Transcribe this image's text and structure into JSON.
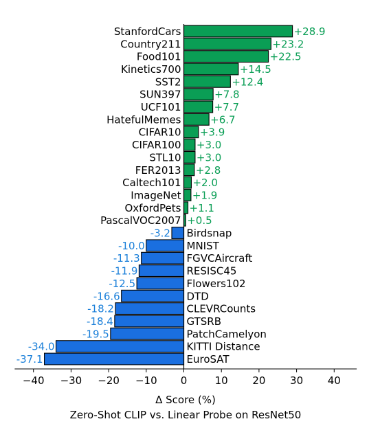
{
  "chart_data": {
    "type": "bar",
    "orientation": "horizontal",
    "categories": [
      "StanfordCars",
      "Country211",
      "Food101",
      "Kinetics700",
      "SST2",
      "SUN397",
      "UCF101",
      "HatefulMemes",
      "CIFAR10",
      "CIFAR100",
      "STL10",
      "FER2013",
      "Caltech101",
      "ImageNet",
      "OxfordPets",
      "PascalVOC2007",
      "Birdsnap",
      "MNIST",
      "FGVCAircraft",
      "RESISC45",
      "Flowers102",
      "DTD",
      "CLEVRCounts",
      "GTSRB",
      "PatchCamelyon",
      "KITTI Distance",
      "EuroSAT"
    ],
    "values": [
      28.9,
      23.2,
      22.5,
      14.5,
      12.4,
      7.8,
      7.7,
      6.7,
      3.9,
      3.0,
      3.0,
      2.8,
      2.0,
      1.9,
      1.1,
      0.5,
      -3.2,
      -10.0,
      -11.3,
      -11.9,
      -12.5,
      -16.6,
      -18.2,
      -18.4,
      -19.5,
      -34.0,
      -37.1
    ],
    "value_labels": [
      "+28.9",
      "+23.2",
      "+22.5",
      "+14.5",
      "+12.4",
      "+7.8",
      "+7.7",
      "+6.7",
      "+3.9",
      "+3.0",
      "+3.0",
      "+2.8",
      "+2.0",
      "+1.9",
      "+1.1",
      "+0.5",
      "-3.2",
      "-10.0",
      "-11.3",
      "-11.9",
      "-12.5",
      "-16.6",
      "-18.2",
      "-18.4",
      "-19.5",
      "-34.0",
      "-37.1"
    ],
    "xlabel": "Δ Score (%)",
    "title": "Zero-Shot CLIP vs. Linear Probe on ResNet50",
    "xlim": [
      -45,
      46
    ],
    "xticks": [
      -40,
      -30,
      -20,
      -10,
      0,
      10,
      20,
      30,
      40
    ],
    "xtick_labels": [
      "−40",
      "−30",
      "−20",
      "−10",
      "0",
      "10",
      "20",
      "30",
      "40"
    ],
    "grid": false,
    "colors": {
      "positive_bar": "#0a9e55",
      "negative_bar": "#1a6fe0",
      "positive_text": "#0a9e55",
      "negative_text": "#1a7fd9",
      "bar_edge": "#000000"
    }
  }
}
